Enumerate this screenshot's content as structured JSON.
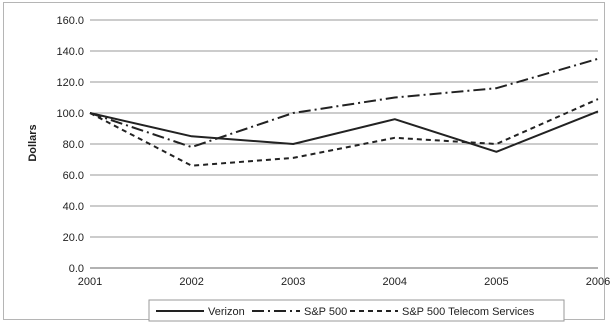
{
  "chart_data": {
    "type": "line",
    "title": "",
    "xlabel": "",
    "ylabel": "Dollars",
    "x": [
      "2001",
      "2002",
      "2003",
      "2004",
      "2005",
      "2006"
    ],
    "ylim": [
      0,
      160
    ],
    "yticks": [
      "160.0",
      "140.0",
      "120.0",
      "100.0",
      "80.0",
      "60.0",
      "40.0",
      "20.0",
      "0.0"
    ],
    "grid": true,
    "legend_position": "bottom",
    "series": [
      {
        "name": "Verizon",
        "style": "solid",
        "color": "#222222",
        "values": [
          100,
          85,
          80,
          96,
          75,
          101
        ]
      },
      {
        "name": "S&P 500",
        "style": "dashdot",
        "color": "#222222",
        "values": [
          100,
          78,
          100,
          110,
          116,
          135
        ]
      },
      {
        "name": "S&P 500 Telecom Services",
        "style": "dashed",
        "color": "#222222",
        "values": [
          100,
          66,
          71,
          84,
          80,
          109
        ]
      }
    ]
  }
}
